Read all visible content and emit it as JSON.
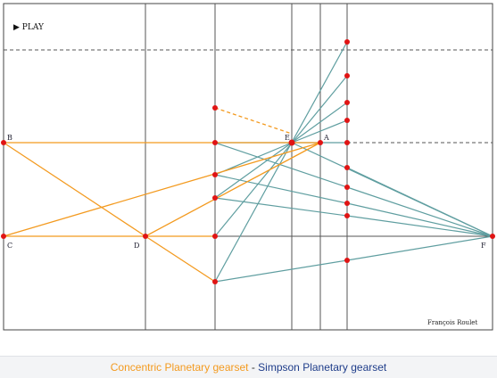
{
  "controls": {
    "play_label": "▶ PLAY",
    "play_icon": "play-icon"
  },
  "credit": "François Roulet",
  "points": {
    "A": "A",
    "B": "B",
    "C": "C",
    "D": "D",
    "E": "E",
    "F": "F"
  },
  "footer": {
    "concentric_label": "Concentric Planetary gearset",
    "separator": " - ",
    "simpson_label": "Simpson Planetary gearset",
    "concentric_color": "#f39a1f",
    "simpson_color": "#1f3d8a"
  },
  "colors": {
    "orange": "#f39a1f",
    "teal": "#5f9ea0",
    "point": "#e01414",
    "grid": "#444444"
  }
}
